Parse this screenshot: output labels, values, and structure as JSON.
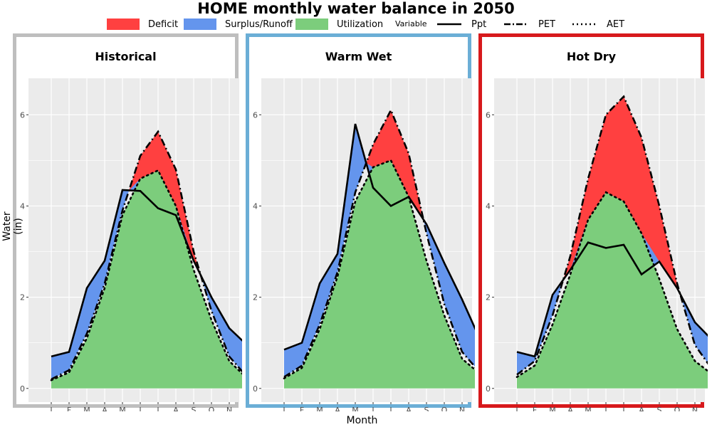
{
  "title": "HOME monthly water balance in 2050",
  "legend": {
    "fill_items": [
      {
        "label": "Deficit",
        "color": "#ff4040"
      },
      {
        "label": "Surplus/Runoff",
        "color": "#6495ed"
      },
      {
        "label": "Utilization",
        "color": "#7ccd7c"
      }
    ],
    "variable_title": "Variable",
    "line_items": [
      {
        "label": "Ppt",
        "dash": "solid"
      },
      {
        "label": "PET",
        "dash": "dashdot"
      },
      {
        "label": "AET",
        "dash": "dotted"
      }
    ]
  },
  "axes": {
    "ylabel": "Water (in)",
    "xlabel": "Month"
  },
  "chart_data": {
    "type": "area",
    "categories": [
      "J",
      "F",
      "M",
      "A",
      "M",
      "J",
      "J",
      "A",
      "S",
      "O",
      "N",
      "D"
    ],
    "y_ticks": [
      0,
      2,
      4,
      6
    ],
    "ylim": [
      -0.3,
      6.8
    ],
    "grid": true,
    "panels": [
      {
        "title": "Historical",
        "border_color": "#bebebe",
        "series": [
          {
            "name": "Ppt",
            "values": [
              0.7,
              0.8,
              2.2,
              2.8,
              4.35,
              4.33,
              3.95,
              3.8,
              2.8,
              2.0,
              1.32,
              0.95
            ]
          },
          {
            "name": "PET",
            "values": [
              0.2,
              0.4,
              1.2,
              2.3,
              3.9,
              5.1,
              5.63,
              4.8,
              3.0,
              1.7,
              0.7,
              0.25
            ]
          },
          {
            "name": "AET",
            "values": [
              0.18,
              0.35,
              1.1,
              2.2,
              3.8,
              4.6,
              4.78,
              4.0,
              2.6,
              1.5,
              0.6,
              0.22
            ]
          }
        ]
      },
      {
        "title": "Warm Wet",
        "border_color": "#6baed6",
        "series": [
          {
            "name": "Ppt",
            "values": [
              0.85,
              1.0,
              2.3,
              2.95,
              5.8,
              4.4,
              4.0,
              4.2,
              3.6,
              2.75,
              1.95,
              1.08
            ]
          },
          {
            "name": "PET",
            "values": [
              0.25,
              0.5,
              1.4,
              2.55,
              4.3,
              5.35,
              6.1,
              5.15,
              3.4,
              1.85,
              0.8,
              0.35
            ]
          },
          {
            "name": "AET",
            "values": [
              0.22,
              0.45,
              1.3,
              2.45,
              4.1,
              4.85,
              5.0,
              4.2,
              2.8,
              1.6,
              0.65,
              0.32
            ]
          }
        ]
      },
      {
        "title": "Hot Dry",
        "border_color": "#d7191c",
        "series": [
          {
            "name": "Ppt",
            "values": [
              0.8,
              0.7,
              2.05,
              2.6,
              3.2,
              3.08,
              3.15,
              2.5,
              2.78,
              2.2,
              1.45,
              1.05
            ]
          },
          {
            "name": "PET",
            "values": [
              0.3,
              0.6,
              1.6,
              2.9,
              4.6,
              6.0,
              6.4,
              5.5,
              4.0,
              2.3,
              0.95,
              0.4
            ]
          },
          {
            "name": "AET",
            "values": [
              0.25,
              0.5,
              1.4,
              2.5,
              3.7,
              4.3,
              4.1,
              3.4,
              2.4,
              1.3,
              0.6,
              0.3
            ]
          }
        ]
      }
    ]
  }
}
